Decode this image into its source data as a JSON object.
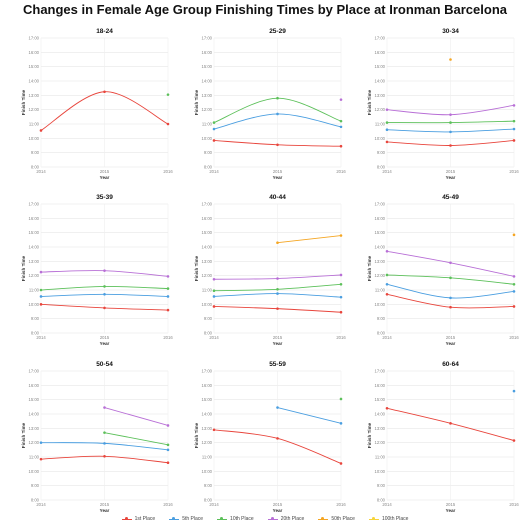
{
  "title": "Changes in Female Age Group Finishing Times by Place at Ironman Barcelona",
  "legend": [
    {
      "name": "1st Place",
      "color": "#e8453c"
    },
    {
      "name": "5th Place",
      "color": "#4a9ee0"
    },
    {
      "name": "10th Place",
      "color": "#5cc05a"
    },
    {
      "name": "20th Place",
      "color": "#b86fd6"
    },
    {
      "name": "50th Place",
      "color": "#f5a623"
    },
    {
      "name": "100th Place",
      "color": "#f7d43a"
    }
  ],
  "chart_data": [
    {
      "type": "line",
      "title": "18-24",
      "xlabel": "Year",
      "ylabel": "Finish Time",
      "x": [
        2014,
        2015,
        2016
      ],
      "yticks": [
        "8:00",
        "9:00",
        "10:00",
        "11:00",
        "12:00",
        "13:00",
        "14:00",
        "15:00",
        "16:00",
        "17:00"
      ],
      "ylim": [
        8,
        17
      ],
      "grid": true,
      "series": [
        {
          "name": "1st Place",
          "values": [
            10.55,
            13.25,
            11.0
          ]
        },
        {
          "name": "10th Place",
          "values": [
            null,
            null,
            13.05
          ]
        }
      ]
    },
    {
      "type": "line",
      "title": "25-29",
      "xlabel": "Year",
      "ylabel": "Finish Time",
      "x": [
        2014,
        2015,
        2016
      ],
      "yticks": [
        "8:00",
        "9:00",
        "10:00",
        "11:00",
        "12:00",
        "13:00",
        "14:00",
        "15:00",
        "16:00",
        "17:00"
      ],
      "ylim": [
        8,
        17
      ],
      "grid": true,
      "series": [
        {
          "name": "1st Place",
          "values": [
            9.85,
            9.55,
            9.45
          ]
        },
        {
          "name": "5th Place",
          "values": [
            10.65,
            11.7,
            10.8
          ]
        },
        {
          "name": "10th Place",
          "values": [
            11.1,
            12.8,
            11.2
          ]
        },
        {
          "name": "20th Place",
          "values": [
            null,
            null,
            12.7
          ]
        }
      ]
    },
    {
      "type": "line",
      "title": "30-34",
      "xlabel": "Year",
      "ylabel": "Finish Time",
      "x": [
        2014,
        2015,
        2016
      ],
      "yticks": [
        "8:00",
        "9:00",
        "10:00",
        "11:00",
        "12:00",
        "13:00",
        "14:00",
        "15:00",
        "16:00",
        "17:00"
      ],
      "ylim": [
        8,
        17
      ],
      "grid": true,
      "series": [
        {
          "name": "1st Place",
          "values": [
            9.75,
            9.5,
            9.85
          ]
        },
        {
          "name": "5th Place",
          "values": [
            10.6,
            10.45,
            10.65
          ]
        },
        {
          "name": "10th Place",
          "values": [
            11.1,
            11.1,
            11.2
          ]
        },
        {
          "name": "20th Place",
          "values": [
            12.0,
            11.65,
            12.3
          ]
        },
        {
          "name": "50th Place",
          "values": [
            null,
            15.5,
            null
          ]
        }
      ]
    },
    {
      "type": "line",
      "title": "35-39",
      "xlabel": "Year",
      "ylabel": "Finish Time",
      "x": [
        2014,
        2015,
        2016
      ],
      "yticks": [
        "8:00",
        "9:00",
        "10:00",
        "11:00",
        "12:00",
        "13:00",
        "14:00",
        "15:00",
        "16:00",
        "17:00"
      ],
      "ylim": [
        8,
        17
      ],
      "grid": true,
      "series": [
        {
          "name": "1st Place",
          "values": [
            10.0,
            9.75,
            9.6
          ]
        },
        {
          "name": "5th Place",
          "values": [
            10.55,
            10.7,
            10.55
          ]
        },
        {
          "name": "10th Place",
          "values": [
            11.0,
            11.25,
            11.1
          ]
        },
        {
          "name": "20th Place",
          "values": [
            12.25,
            12.35,
            11.95
          ]
        }
      ]
    },
    {
      "type": "line",
      "title": "40-44",
      "xlabel": "Year",
      "ylabel": "Finish Time",
      "x": [
        2014,
        2015,
        2016
      ],
      "yticks": [
        "8:00",
        "9:00",
        "10:00",
        "11:00",
        "12:00",
        "13:00",
        "14:00",
        "15:00",
        "16:00",
        "17:00"
      ],
      "ylim": [
        8,
        17
      ],
      "grid": true,
      "series": [
        {
          "name": "1st Place",
          "values": [
            9.85,
            9.7,
            9.45
          ]
        },
        {
          "name": "5th Place",
          "values": [
            10.55,
            10.75,
            10.5
          ]
        },
        {
          "name": "10th Place",
          "values": [
            10.95,
            11.05,
            11.4
          ]
        },
        {
          "name": "20th Place",
          "values": [
            11.75,
            11.8,
            12.05
          ]
        },
        {
          "name": "50th Place",
          "values": [
            null,
            14.3,
            14.8
          ]
        }
      ]
    },
    {
      "type": "line",
      "title": "45-49",
      "xlabel": "Year",
      "ylabel": "Finish Time",
      "x": [
        2014,
        2015,
        2016
      ],
      "yticks": [
        "8:00",
        "9:00",
        "10:00",
        "11:00",
        "12:00",
        "13:00",
        "14:00",
        "15:00",
        "16:00",
        "17:00"
      ],
      "ylim": [
        8,
        17
      ],
      "grid": true,
      "series": [
        {
          "name": "1st Place",
          "values": [
            10.7,
            9.8,
            9.85
          ]
        },
        {
          "name": "5th Place",
          "values": [
            11.4,
            10.45,
            10.9
          ]
        },
        {
          "name": "10th Place",
          "values": [
            12.05,
            11.85,
            11.4
          ]
        },
        {
          "name": "20th Place",
          "values": [
            13.7,
            12.9,
            11.95
          ]
        },
        {
          "name": "50th Place",
          "values": [
            null,
            null,
            14.85
          ]
        }
      ]
    },
    {
      "type": "line",
      "title": "50-54",
      "xlabel": "Year",
      "ylabel": "Finish Time",
      "x": [
        2014,
        2015,
        2016
      ],
      "yticks": [
        "8:00",
        "9:00",
        "10:00",
        "11:00",
        "12:00",
        "13:00",
        "14:00",
        "15:00",
        "16:00",
        "17:00"
      ],
      "ylim": [
        8,
        17
      ],
      "grid": true,
      "series": [
        {
          "name": "1st Place",
          "values": [
            10.85,
            11.05,
            10.6
          ]
        },
        {
          "name": "5th Place",
          "values": [
            12.0,
            11.95,
            11.5
          ]
        },
        {
          "name": "10th Place",
          "values": [
            null,
            12.7,
            11.85
          ]
        },
        {
          "name": "20th Place",
          "values": [
            null,
            14.45,
            13.2
          ]
        }
      ]
    },
    {
      "type": "line",
      "title": "55-59",
      "xlabel": "Year",
      "ylabel": "Finish Time",
      "x": [
        2014,
        2015,
        2016
      ],
      "yticks": [
        "8:00",
        "9:00",
        "10:00",
        "11:00",
        "12:00",
        "13:00",
        "14:00",
        "15:00",
        "16:00",
        "17:00"
      ],
      "ylim": [
        8,
        17
      ],
      "grid": true,
      "series": [
        {
          "name": "1st Place",
          "values": [
            12.9,
            12.3,
            10.55
          ]
        },
        {
          "name": "5th Place",
          "values": [
            null,
            14.45,
            13.35
          ]
        },
        {
          "name": "10th Place",
          "values": [
            null,
            null,
            15.05
          ]
        }
      ]
    },
    {
      "type": "line",
      "title": "60-64",
      "xlabel": "Year",
      "ylabel": "Finish Time",
      "x": [
        2014,
        2015,
        2016
      ],
      "yticks": [
        "8:00",
        "9:00",
        "10:00",
        "11:00",
        "12:00",
        "13:00",
        "14:00",
        "15:00",
        "16:00",
        "17:00"
      ],
      "ylim": [
        8,
        17
      ],
      "grid": true,
      "series": [
        {
          "name": "1st Place",
          "values": [
            14.4,
            13.35,
            12.15
          ]
        },
        {
          "name": "5th Place",
          "values": [
            null,
            null,
            15.6
          ]
        }
      ]
    }
  ]
}
